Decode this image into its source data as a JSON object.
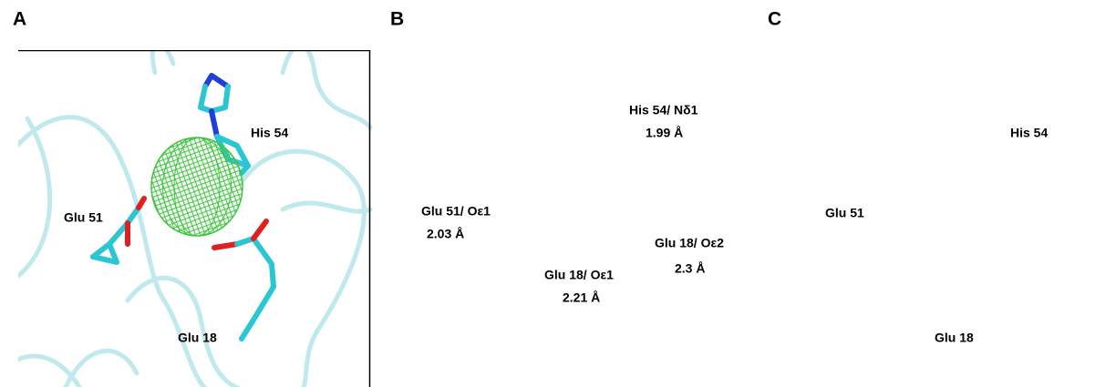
{
  "panels": [
    {
      "letter": "A",
      "labels": [
        "His 54",
        "Glu 51",
        "Glu 18"
      ]
    },
    {
      "letter": "B",
      "labels": [
        "His 54/ Nδ1",
        "1.99 Å",
        "Glu 51/ Oε1",
        "2.03 Å",
        "Glu 18/ Oε1",
        "2.21 Å",
        "Glu 18/ Oε2",
        "2.3 Å"
      ]
    },
    {
      "letter": "C",
      "labels": [
        "His 54",
        "Glu 51",
        "Glu 18"
      ]
    }
  ]
}
